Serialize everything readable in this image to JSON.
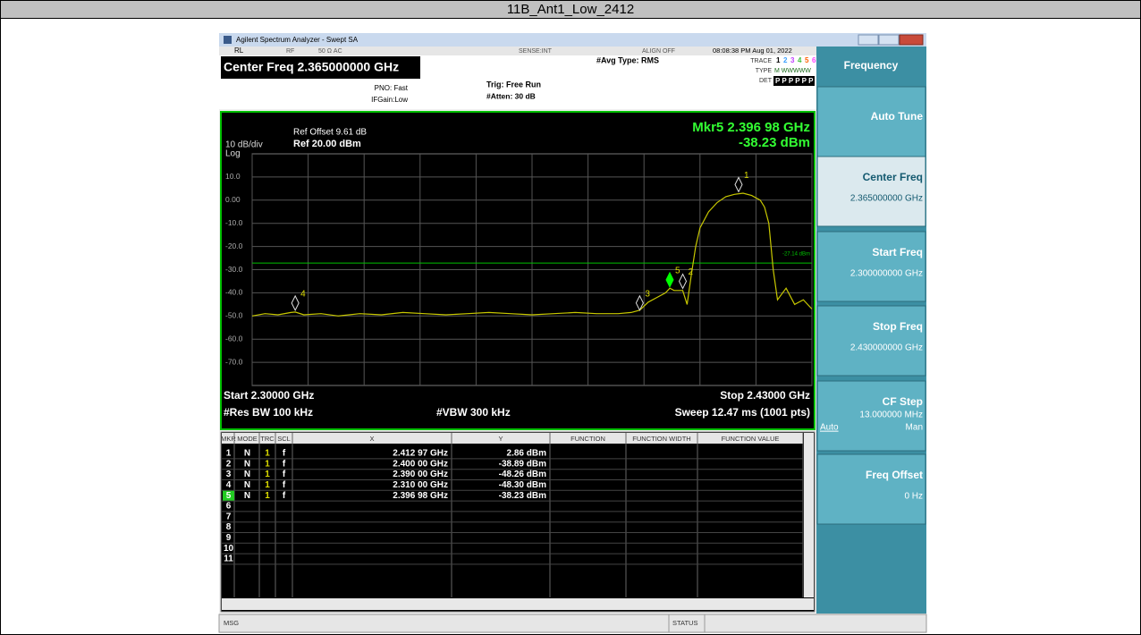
{
  "title": "11B_Ant1_Low_2412",
  "window": {
    "title": "Agilent Spectrum Analyzer - Swept SA"
  },
  "status_bar": {
    "rl": "RL",
    "rf": "RF",
    "impedance": "50 Ω  AC",
    "sense": "SENSE:INT",
    "align": "ALIGN OFF",
    "datetime": "08:08:38 PM Aug 01, 2022"
  },
  "settings": {
    "center_freq": "Center Freq 2.365000000 GHz",
    "pno": "PNO: Fast",
    "ifgain": "IFGain:Low",
    "trig": "Trig: Free Run",
    "atten": "#Atten: 30 dB",
    "avg_type": "#Avg Type: RMS",
    "trace_label": "TRACE",
    "trace_nums": [
      "1",
      "2",
      "3",
      "4",
      "5",
      "6"
    ],
    "type_label": "TYPE",
    "type_value": "M WWWWW",
    "det_label": "DET",
    "det_value": "P P P P P P"
  },
  "chart_data": {
    "type": "line",
    "ref_offset": "Ref Offset 9.61 dB",
    "ref_level": "Ref 20.00 dBm",
    "scale": "10 dB/div",
    "scale_type": "Log",
    "marker_readout": {
      "freq": "Mkr5 2.396 98 GHz",
      "level": "-38.23 dBm"
    },
    "xlim": [
      2.3,
      2.43
    ],
    "ylim": [
      -80,
      20
    ],
    "xticks": [
      2.3,
      2.313,
      2.326,
      2.339,
      2.352,
      2.365,
      2.378,
      2.391,
      2.404,
      2.417,
      2.43
    ],
    "yticks": [
      {
        "value": 10,
        "label": "10.0"
      },
      {
        "value": 0,
        "label": "0.00"
      },
      {
        "value": -10,
        "label": "-10.0"
      },
      {
        "value": -20,
        "label": "-20.0"
      },
      {
        "value": -30,
        "label": "-30.0"
      },
      {
        "value": -40,
        "label": "-40.0"
      },
      {
        "value": -50,
        "label": "-50.0"
      },
      {
        "value": -60,
        "label": "-60.0"
      },
      {
        "value": -70,
        "label": "-70.0"
      }
    ],
    "grid": true,
    "series": [
      {
        "color": "#c8c800",
        "x": [
          2.3,
          2.303,
          2.306,
          2.309,
          2.31,
          2.312,
          2.316,
          2.32,
          2.325,
          2.33,
          2.335,
          2.34,
          2.345,
          2.35,
          2.355,
          2.36,
          2.365,
          2.37,
          2.375,
          2.38,
          2.385,
          2.388,
          2.39,
          2.392,
          2.394,
          2.396,
          2.397,
          2.398,
          2.4,
          2.401,
          2.402,
          2.403,
          2.404,
          2.406,
          2.408,
          2.41,
          2.412,
          2.414,
          2.416,
          2.418,
          2.419,
          2.42,
          2.421,
          2.422,
          2.424,
          2.426,
          2.428,
          2.43
        ],
        "values": [
          -50,
          -49,
          -49.5,
          -48.5,
          -48.3,
          -49.5,
          -49,
          -50,
          -49,
          -49.5,
          -48.5,
          -49,
          -49.5,
          -49,
          -48.5,
          -49,
          -49.5,
          -49,
          -48.5,
          -49,
          -49,
          -48.5,
          -47.5,
          -44,
          -42,
          -40,
          -38,
          -39,
          -39,
          -45,
          -32,
          -20,
          -12,
          -5,
          -1,
          1.5,
          2.5,
          3,
          2,
          0,
          -3,
          -10,
          -30,
          -43,
          -38,
          -45,
          -43,
          -47
        ]
      }
    ],
    "limit_line": {
      "value": -27.14,
      "label": "-27.14 dBm",
      "color": "#00c000"
    },
    "markers": [
      {
        "label": "1",
        "x": 2.41297,
        "y": 2.86
      },
      {
        "label": "2",
        "x": 2.4,
        "y": -38.89
      },
      {
        "label": "3",
        "x": 2.39,
        "y": -48.26
      },
      {
        "label": "4",
        "x": 2.31,
        "y": -48.3
      },
      {
        "label": "5",
        "x": 2.39698,
        "y": -38.23,
        "active": true
      }
    ],
    "start": "Start 2.30000 GHz",
    "stop": "Stop 2.43000 GHz",
    "rbw": "#Res BW 100 kHz",
    "vbw": "#VBW 300 kHz",
    "sweep": "Sweep  12.47 ms (1001 pts)"
  },
  "marker_table": {
    "headers": [
      "MKR",
      "MODE",
      "TRC",
      "SCL",
      "X",
      "Y",
      "FUNCTION",
      "FUNCTION WIDTH",
      "FUNCTION VALUE"
    ],
    "rows": [
      [
        "1",
        "N",
        "1",
        "f",
        "2.412 97 GHz",
        "2.86 dBm"
      ],
      [
        "2",
        "N",
        "1",
        "f",
        "2.400 00 GHz",
        "-38.89 dBm"
      ],
      [
        "3",
        "N",
        "1",
        "f",
        "2.390 00 GHz",
        "-48.26 dBm"
      ],
      [
        "4",
        "N",
        "1",
        "f",
        "2.310 00 GHz",
        "-48.30 dBm"
      ],
      [
        "5",
        "N",
        "1",
        "f",
        "2.396 98 GHz",
        "-38.23 dBm"
      ],
      [
        "6"
      ],
      [
        "7"
      ],
      [
        "8"
      ],
      [
        "9"
      ],
      [
        "10"
      ],
      [
        "11"
      ]
    ]
  },
  "softkeys": {
    "menu": "Frequency",
    "keys": [
      {
        "label": "Auto Tune"
      },
      {
        "label": "Center Freq",
        "value": "2.365000000 GHz"
      },
      {
        "label": "Start Freq",
        "value": "2.300000000 GHz"
      },
      {
        "label": "Stop Freq",
        "value": "2.430000000 GHz"
      },
      {
        "label": "CF Step",
        "value": "13.000000 MHz",
        "options": [
          "Auto",
          "Man"
        ]
      },
      {
        "label": "Freq Offset",
        "value": "0 Hz"
      }
    ]
  },
  "footer": {
    "msg": "MSG",
    "status": "STATUS"
  }
}
